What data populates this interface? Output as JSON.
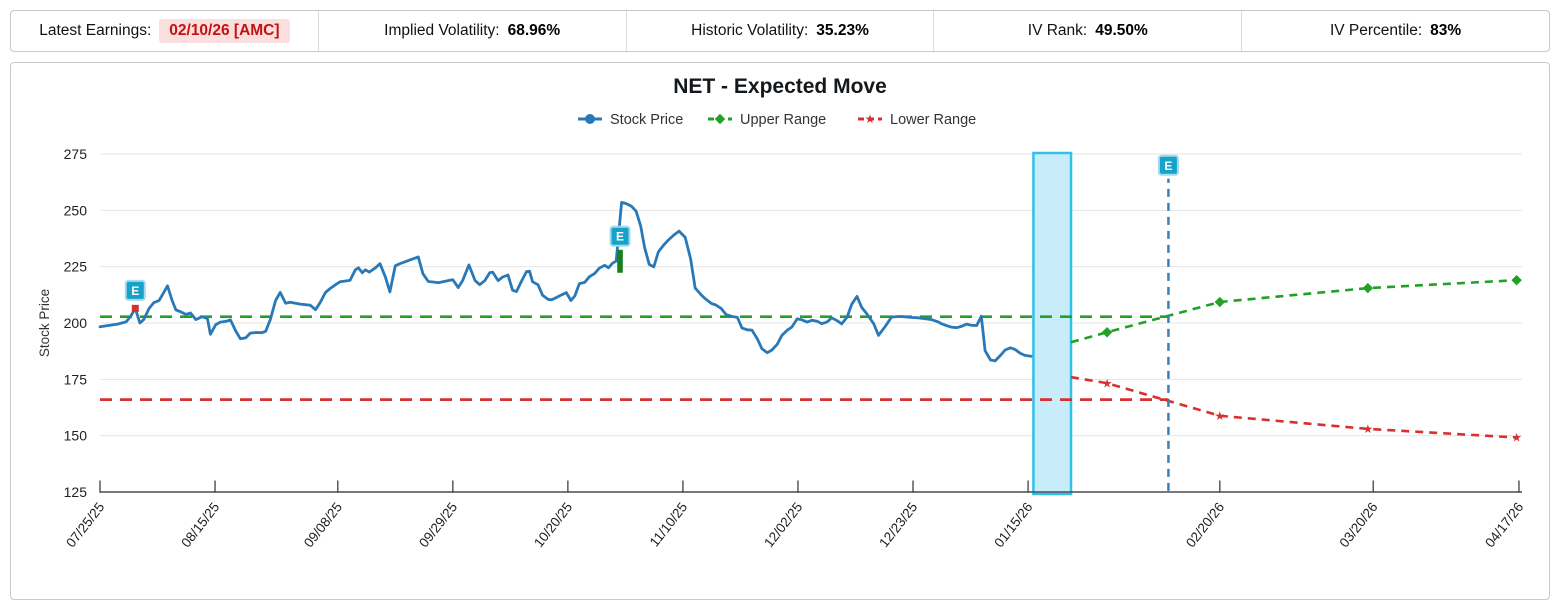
{
  "topbar": {
    "stats": [
      {
        "label": "Latest Earnings:",
        "value": "02/10/26 [AMC]",
        "highlight": true
      },
      {
        "label": "Implied Volatility:",
        "value": "68.96%"
      },
      {
        "label": "Historic Volatility:",
        "value": "35.23%"
      },
      {
        "label": "IV Rank:",
        "value": "49.50%"
      },
      {
        "label": "IV Percentile:",
        "value": "83%"
      }
    ]
  },
  "legend": [
    {
      "label": "Stock Price",
      "color": "#2979b8",
      "marker": "circle",
      "dashed": false
    },
    {
      "label": "Upper Range",
      "color": "#22a127",
      "marker": "diamond",
      "dashed": true
    },
    {
      "label": "Lower Range",
      "color": "#d82f2f",
      "marker": "star",
      "dashed": true
    }
  ],
  "colors": {
    "blue": "#2979b8",
    "green": "#22a127",
    "green_bar": "#1b7e1f",
    "red": "#d82f2f",
    "badge": "#17a3c9",
    "badge_edge": "#a0dcee",
    "band_fill": "#c8ecf9",
    "band_border": "#2fc1e9",
    "grid": "#e5e5e5",
    "axis": "#4d4d4d",
    "tick_text": "#222222",
    "legend_text": "#333333"
  },
  "chart_data": {
    "type": "line",
    "title": "NET - Expected Move",
    "ylabel": "Stock Price",
    "ylim": [
      125,
      275
    ],
    "yticks": [
      125,
      150,
      175,
      200,
      225,
      250,
      275
    ],
    "x_unit": "trading-day index from 07/25/25",
    "x_axis": {
      "ticks": [
        {
          "label": "07/25/25",
          "t": 0
        },
        {
          "label": "08/15/25",
          "t": 15
        },
        {
          "label": "09/08/25",
          "t": 31
        },
        {
          "label": "09/29/25",
          "t": 46
        },
        {
          "label": "10/20/25",
          "t": 61
        },
        {
          "label": "11/10/25",
          "t": 76
        },
        {
          "label": "12/02/25",
          "t": 91
        },
        {
          "label": "12/23/25",
          "t": 106
        },
        {
          "label": "01/15/26",
          "t": 121
        },
        {
          "label": "02/20/26",
          "t": 146
        },
        {
          "label": "03/20/26",
          "t": 166
        },
        {
          "label": "04/17/26",
          "t": 185
        }
      ]
    },
    "stock": {
      "name": "Stock Price",
      "points": [
        [
          0,
          198.3
        ],
        [
          1.3,
          199
        ],
        [
          2.3,
          199.5
        ],
        [
          3.4,
          200.5
        ],
        [
          4,
          203
        ],
        [
          4.6,
          206.5
        ],
        [
          5.2,
          200
        ],
        [
          5.7,
          201.5
        ],
        [
          6.4,
          206.5
        ],
        [
          7,
          209
        ],
        [
          7.7,
          210
        ],
        [
          8.3,
          213.5
        ],
        [
          8.8,
          216.5
        ],
        [
          9.4,
          210
        ],
        [
          9.9,
          205.8
        ],
        [
          10.5,
          205
        ],
        [
          11.2,
          203.8
        ],
        [
          11.8,
          204.5
        ],
        [
          12.5,
          201.5
        ],
        [
          13.3,
          202.8
        ],
        [
          14,
          202
        ],
        [
          14.4,
          195
        ],
        [
          15.1,
          199.3
        ],
        [
          15.7,
          200.4
        ],
        [
          16.5,
          200.8
        ],
        [
          17,
          201.4
        ],
        [
          17.7,
          196.4
        ],
        [
          18.3,
          193
        ],
        [
          19,
          193.4
        ],
        [
          19.6,
          195.5
        ],
        [
          20.4,
          195.8
        ],
        [
          21.1,
          195.7
        ],
        [
          21.6,
          196.3
        ],
        [
          22.2,
          201.5
        ],
        [
          22.9,
          210
        ],
        [
          23.5,
          213.6
        ],
        [
          24.2,
          208.8
        ],
        [
          24.8,
          209.2
        ],
        [
          26.1,
          208.4
        ],
        [
          27.4,
          207.9
        ],
        [
          28.1,
          205.9
        ],
        [
          28.7,
          209
        ],
        [
          29.4,
          213.6
        ],
        [
          30,
          215.3
        ],
        [
          30.7,
          217
        ],
        [
          31.3,
          218.3
        ],
        [
          32.6,
          218.9
        ],
        [
          33.3,
          223.6
        ],
        [
          33.7,
          224.5
        ],
        [
          34.2,
          222.3
        ],
        [
          34.6,
          223.6
        ],
        [
          35.1,
          222.6
        ],
        [
          35.9,
          224.5
        ],
        [
          36.5,
          226.3
        ],
        [
          37.2,
          220.5
        ],
        [
          37.8,
          213.8
        ],
        [
          38.5,
          225.4
        ],
        [
          39.1,
          226.3
        ],
        [
          39.8,
          227.2
        ],
        [
          40.4,
          228
        ],
        [
          41.5,
          229.3
        ],
        [
          42.1,
          221.9
        ],
        [
          42.8,
          218.4
        ],
        [
          43.4,
          218.2
        ],
        [
          44.1,
          217.9
        ],
        [
          45.4,
          218.8
        ],
        [
          46,
          219.2
        ],
        [
          46.7,
          215.7
        ],
        [
          47.3,
          219
        ],
        [
          48.1,
          225.8
        ],
        [
          48.9,
          218.8
        ],
        [
          49.5,
          217
        ],
        [
          50.2,
          218.9
        ],
        [
          50.8,
          222.3
        ],
        [
          51.2,
          222.6
        ],
        [
          51.9,
          218.8
        ],
        [
          52.5,
          220.4
        ],
        [
          53.2,
          221.3
        ],
        [
          53.8,
          214.5
        ],
        [
          54.3,
          214
        ],
        [
          55,
          218.9
        ],
        [
          55.6,
          222.8
        ],
        [
          56,
          223
        ],
        [
          56.4,
          218.3
        ],
        [
          57.1,
          217
        ],
        [
          57.7,
          212.3
        ],
        [
          58.4,
          210.5
        ],
        [
          58.9,
          210.3
        ],
        [
          59.5,
          211.3
        ],
        [
          60.2,
          212.5
        ],
        [
          60.8,
          213.5
        ],
        [
          61.4,
          210
        ],
        [
          61.9,
          212
        ],
        [
          62.5,
          217.5
        ],
        [
          63.2,
          218
        ],
        [
          63.8,
          220.5
        ],
        [
          64.5,
          222
        ],
        [
          65.1,
          224.3
        ],
        [
          65.8,
          225.6
        ],
        [
          66.3,
          224.5
        ],
        [
          66.8,
          226.5
        ],
        [
          67.3,
          227.5
        ],
        [
          68,
          253.5
        ],
        [
          68.6,
          253
        ],
        [
          69.3,
          251.8
        ],
        [
          69.9,
          249.6
        ],
        [
          70.5,
          243
        ],
        [
          71,
          233.5
        ],
        [
          71.6,
          226
        ],
        [
          72.2,
          224.9
        ],
        [
          72.8,
          231.6
        ],
        [
          73.5,
          234.6
        ],
        [
          74.1,
          236.8
        ],
        [
          74.8,
          239
        ],
        [
          75.5,
          240.8
        ],
        [
          76.3,
          238
        ],
        [
          77,
          228.5
        ],
        [
          77.6,
          215.5
        ],
        [
          78.3,
          212.8
        ],
        [
          78.9,
          210.8
        ],
        [
          79.7,
          208.7
        ],
        [
          80.3,
          208
        ],
        [
          81,
          206.4
        ],
        [
          81.6,
          203.8
        ],
        [
          82.4,
          202.9
        ],
        [
          83.1,
          202.5
        ],
        [
          83.7,
          197.8
        ],
        [
          84.4,
          197
        ],
        [
          85,
          196.8
        ],
        [
          85.7,
          193
        ],
        [
          86.3,
          188.6
        ],
        [
          87,
          186.8
        ],
        [
          87.6,
          188
        ],
        [
          88.3,
          190.6
        ],
        [
          88.9,
          194.5
        ],
        [
          89.6,
          196.8
        ],
        [
          90.2,
          198.2
        ],
        [
          90.9,
          201.8
        ],
        [
          91.5,
          201.4
        ],
        [
          92.2,
          200.4
        ],
        [
          92.8,
          201.2
        ],
        [
          93.5,
          200.8
        ],
        [
          94.1,
          199.7
        ],
        [
          94.8,
          200.5
        ],
        [
          95.4,
          202.3
        ],
        [
          96.1,
          201
        ],
        [
          96.7,
          199.6
        ],
        [
          97.4,
          202.6
        ],
        [
          98,
          208.3
        ],
        [
          98.7,
          211.8
        ],
        [
          99.3,
          207
        ],
        [
          99.7,
          205.3
        ],
        [
          100.2,
          203
        ],
        [
          100.9,
          199.5
        ],
        [
          101.5,
          194.5
        ],
        [
          102.4,
          198.6
        ],
        [
          103.2,
          202.6
        ],
        [
          104.1,
          202.9
        ],
        [
          104.8,
          202.8
        ],
        [
          105.7,
          202.5
        ],
        [
          106.7,
          202.3
        ],
        [
          107.6,
          201.9
        ],
        [
          108.4,
          201.5
        ],
        [
          109.3,
          200.5
        ],
        [
          109.7,
          199.7
        ],
        [
          110.4,
          198.8
        ],
        [
          111,
          198.2
        ],
        [
          111.7,
          197.9
        ],
        [
          112.3,
          198.5
        ],
        [
          113,
          199.5
        ],
        [
          113.6,
          199
        ],
        [
          114.3,
          198.9
        ],
        [
          114.9,
          203
        ],
        [
          115.4,
          187.7
        ],
        [
          116.1,
          183.6
        ],
        [
          116.7,
          183.2
        ],
        [
          117.4,
          185.6
        ],
        [
          118,
          188
        ],
        [
          118.7,
          189
        ],
        [
          119.3,
          188.3
        ],
        [
          120,
          186.5
        ],
        [
          120.6,
          185.6
        ],
        [
          121.4,
          185.2
        ]
      ]
    },
    "upper_flat": {
      "name": "Upper Range (to earnings)",
      "value": 202.8,
      "t_from": 0,
      "t_to": 139.3
    },
    "lower_flat": {
      "name": "Lower Range (to earnings)",
      "value": 166.0,
      "t_from": 0,
      "t_to": 139.3
    },
    "upper_forecast": {
      "name": "Upper Range",
      "points": [
        [
          126.6,
          191.5
        ],
        [
          131.3,
          195.9
        ],
        [
          146,
          209.3
        ],
        [
          165.3,
          215.5
        ],
        [
          184.7,
          219
        ]
      ]
    },
    "lower_forecast": {
      "name": "Lower Range",
      "points": [
        [
          126.6,
          176
        ],
        [
          131.3,
          173.3
        ],
        [
          146,
          158.8
        ],
        [
          165.3,
          153
        ],
        [
          184.7,
          149.2
        ]
      ]
    },
    "highlight_band": {
      "t_from": 121.7,
      "t_to": 126.6
    },
    "earnings": [
      {
        "type": "dot",
        "label": "E",
        "t": 4.6,
        "badge_v": 214.5,
        "dot_v": 206.5
      },
      {
        "type": "bar",
        "label": "E",
        "t": 67.8,
        "badge_v": 238.5,
        "bar": [
          222.3,
          232.5
        ]
      },
      {
        "type": "vline",
        "label": "E",
        "t": 139.3,
        "badge_v": 270,
        "vline": [
          125.5,
          264
        ]
      }
    ]
  }
}
